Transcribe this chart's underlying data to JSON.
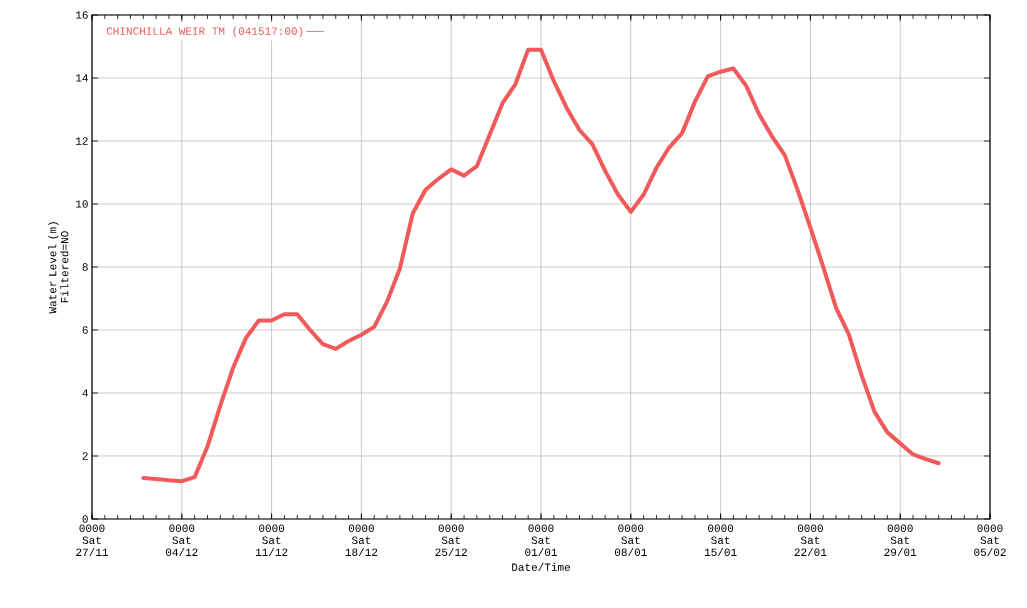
{
  "chart_data": {
    "type": "line",
    "xlabel": "Date/Time",
    "ylabel": "Water Level (m) Filtered=NO",
    "categories": [
      "0000 Sat 27/11",
      null,
      null,
      null,
      null,
      null,
      null,
      "0000 Sat 04/12",
      null,
      null,
      null,
      null,
      null,
      null,
      "0000 Sat 11/12",
      null,
      null,
      null,
      null,
      null,
      null,
      "0000 Sat 18/12",
      null,
      null,
      null,
      null,
      null,
      null,
      "0000 Sat 25/12",
      null,
      null,
      null,
      null,
      null,
      null,
      "0000 Sat 01/01",
      null,
      null,
      null,
      null,
      null,
      null,
      "0000 Sat 08/01",
      null,
      null,
      null,
      null,
      null,
      null,
      "0000 Sat 15/01",
      null,
      null,
      null,
      null,
      null,
      null,
      "0000 Sat 22/01",
      null,
      null,
      null,
      null,
      null,
      null,
      "0000 Sat 29/01",
      null,
      null,
      null,
      null,
      null,
      null,
      "0000 Sat 05/02"
    ],
    "series": [
      {
        "name": "CHINCHILLA WEIR TM (041517:00)",
        "color": "#f05a5a",
        "values": [
          null,
          null,
          null,
          null,
          1.3,
          1.27,
          1.23,
          1.2,
          1.33,
          2.3,
          3.6,
          4.8,
          5.75,
          6.3,
          6.3,
          6.5,
          6.5,
          6.0,
          5.55,
          5.4,
          5.65,
          5.85,
          6.1,
          6.9,
          7.95,
          9.7,
          10.45,
          10.8,
          11.1,
          10.9,
          11.2,
          12.2,
          13.2,
          13.8,
          14.9,
          14.9,
          13.9,
          13.05,
          12.35,
          11.9,
          11.05,
          10.3,
          9.75,
          10.3,
          11.15,
          11.8,
          12.25,
          13.25,
          14.05,
          14.2,
          14.3,
          13.75,
          12.85,
          12.15,
          11.55,
          10.45,
          9.25,
          8.0,
          6.7,
          5.85,
          4.55,
          3.4,
          2.75,
          2.4,
          2.05,
          1.9,
          1.77,
          null,
          null,
          null,
          null
        ]
      }
    ],
    "ylim": [
      0,
      16
    ],
    "yticks": [
      0,
      2,
      4,
      6,
      8,
      10,
      12,
      14,
      16
    ],
    "grid": true,
    "legend": "top left",
    "line_style": "solid"
  }
}
